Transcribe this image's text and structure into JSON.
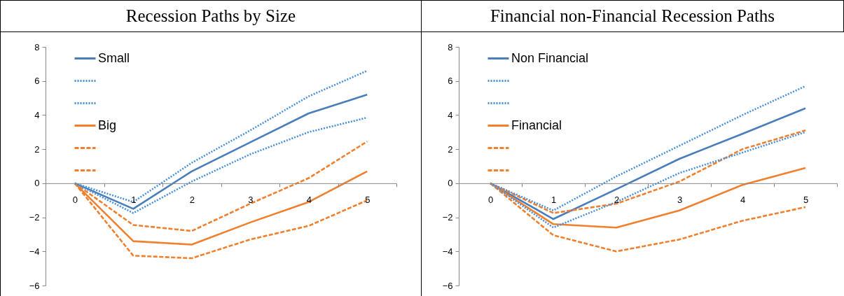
{
  "chart_data": [
    {
      "type": "line",
      "title": "Recession Paths by Size",
      "categories": [
        "0",
        "1",
        "2",
        "3",
        "4",
        "5"
      ],
      "ylim": [
        -6,
        8
      ],
      "yticks": [
        -6,
        -4,
        -2,
        0,
        2,
        4,
        6,
        8
      ],
      "legend": "top left",
      "series": [
        {
          "name": "Small",
          "color": "#4a7ebb",
          "line_style": "solid",
          "values": [
            0,
            -1.5,
            0.7,
            2.4,
            4.1,
            5.2
          ]
        },
        {
          "color": "#4a90d9",
          "line_style": "dotted",
          "values": [
            0,
            -1.1,
            1.2,
            3.1,
            5.1,
            6.6
          ]
        },
        {
          "color": "#4a90d9",
          "line_style": "dotted",
          "values": [
            0,
            -1.75,
            0.1,
            1.7,
            3.0,
            3.85
          ]
        },
        {
          "name": "Big",
          "color": "#f07f2e",
          "line_style": "solid",
          "values": [
            0,
            -3.4,
            -3.6,
            -2.3,
            -1.1,
            0.7
          ]
        },
        {
          "color": "#f07f2e",
          "line_style": "dashed",
          "values": [
            0,
            -2.45,
            -2.8,
            -1.2,
            0.3,
            2.45
          ]
        },
        {
          "color": "#f07f2e",
          "line_style": "dashed",
          "values": [
            0,
            -4.25,
            -4.4,
            -3.3,
            -2.5,
            -1.0
          ]
        }
      ]
    },
    {
      "type": "line",
      "title": "Financial non-Financial Recession Paths",
      "categories": [
        "0",
        "1",
        "2",
        "3",
        "4",
        "5"
      ],
      "ylim": [
        -6,
        8
      ],
      "yticks": [
        -6,
        -4,
        -2,
        0,
        2,
        4,
        6,
        8
      ],
      "legend": "top left",
      "series": [
        {
          "name": "Non Financial",
          "color": "#4a7ebb",
          "line_style": "solid",
          "values": [
            0,
            -2.1,
            -0.35,
            1.43,
            2.9,
            4.4
          ]
        },
        {
          "color": "#4a90d9",
          "line_style": "dotted",
          "values": [
            0,
            -1.6,
            0.4,
            2.2,
            4.0,
            5.7
          ]
        },
        {
          "color": "#4a90d9",
          "line_style": "dotted",
          "values": [
            0,
            -2.6,
            -1.1,
            0.6,
            1.8,
            3.0
          ]
        },
        {
          "name": "Financial",
          "color": "#f07f2e",
          "line_style": "solid",
          "values": [
            0,
            -2.4,
            -2.6,
            -1.6,
            -0.1,
            0.9
          ]
        },
        {
          "color": "#f07f2e",
          "line_style": "dashed",
          "values": [
            0,
            -1.75,
            -1.2,
            0.1,
            2.0,
            3.1
          ]
        },
        {
          "color": "#f07f2e",
          "line_style": "dashed",
          "values": [
            0,
            -3.05,
            -4.0,
            -3.3,
            -2.2,
            -1.4
          ]
        }
      ]
    }
  ]
}
